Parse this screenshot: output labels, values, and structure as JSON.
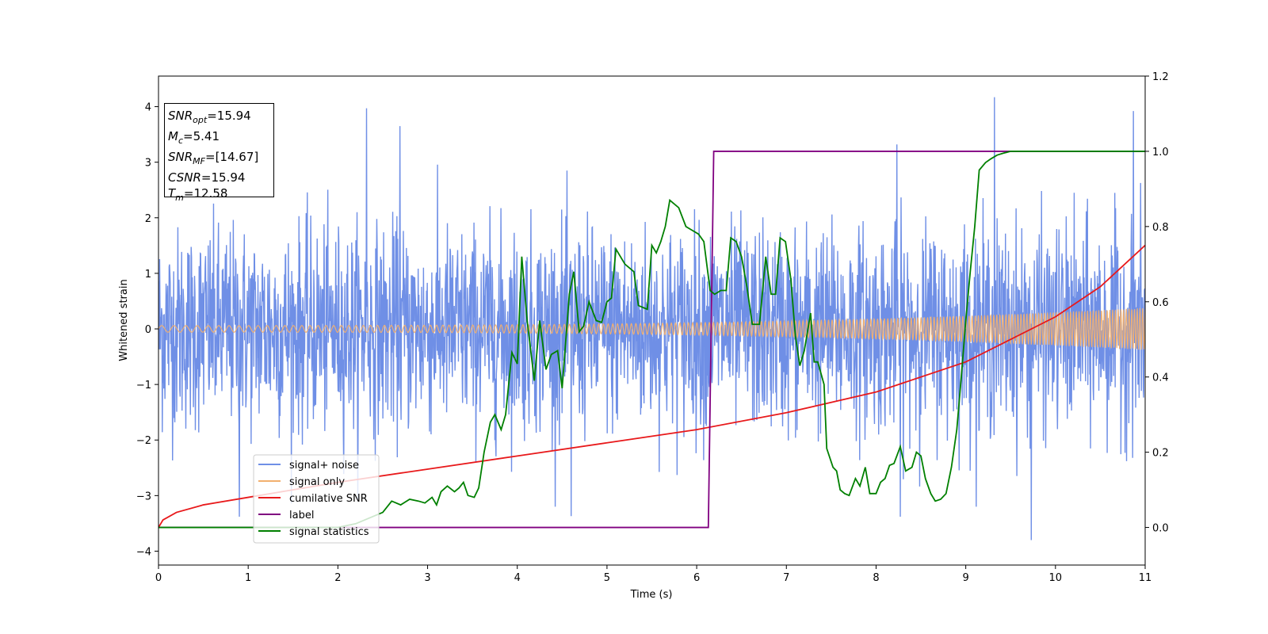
{
  "chart_data": {
    "type": "line",
    "title": "",
    "xlabel": "Time (s)",
    "ylabel": "Whitened strain",
    "xlim": [
      0,
      11
    ],
    "ylim": [
      -4.25,
      4.55
    ],
    "y2lim": [
      -0.1,
      1.2
    ],
    "xticks": [
      0,
      1,
      2,
      3,
      4,
      5,
      6,
      7,
      8,
      9,
      10,
      11
    ],
    "yticks": [
      -4,
      -3,
      -2,
      -1,
      0,
      1,
      2,
      3,
      4
    ],
    "y2ticks": [
      0.0,
      0.2,
      0.4,
      0.6,
      0.8,
      1.0,
      1.2
    ],
    "grid": false,
    "legend_position": "lower-left",
    "annotation": {
      "rows": [
        {
          "sym": "SNR",
          "sub": "opt",
          "text": "=15.94"
        },
        {
          "sym": "M",
          "sub": "c",
          "text": "=5.41"
        },
        {
          "sym": "SNR",
          "sub": "MF",
          "text": "=[14.67]"
        },
        {
          "sym": "CSNR",
          "sub": "",
          "text": "=15.94"
        },
        {
          "sym": "T",
          "sub": "m",
          "text": "=12.58"
        }
      ]
    },
    "series": [
      {
        "name": "signal+ noise",
        "axis": "left",
        "color": "#6f8fe6",
        "kind": "noise",
        "std": 0.95,
        "peak_spikes": [
          [
            2.32,
            3.97
          ],
          [
            2.69,
            3.65
          ],
          [
            8.23,
            3.32
          ],
          [
            9.32,
            4.17
          ],
          [
            10.87,
            3.92
          ],
          [
            9.73,
            -3.8
          ],
          [
            4.6,
            -3.37
          ],
          [
            8.27,
            -3.38
          ],
          [
            0.9,
            -3.38
          ]
        ]
      },
      {
        "name": "signal only",
        "axis": "left",
        "color": "#f2b06f",
        "kind": "chirp",
        "amplitude_start": 0.06,
        "amplitude_end": 0.38
      },
      {
        "name": "cumilative SNR",
        "axis": "right",
        "color": "#e8191b",
        "x": [
          0,
          0.05,
          0.2,
          0.5,
          1,
          2,
          3,
          4,
          5,
          6,
          7,
          8,
          9,
          10,
          10.5,
          11
        ],
        "y": [
          0.0,
          0.02,
          0.04,
          0.06,
          0.08,
          0.12,
          0.155,
          0.19,
          0.225,
          0.26,
          0.305,
          0.36,
          0.44,
          0.56,
          0.64,
          0.75
        ]
      },
      {
        "name": "label",
        "axis": "right",
        "color": "#800080",
        "x": [
          0,
          6.13,
          6.19,
          11
        ],
        "y": [
          0.0,
          0.0,
          1.0,
          1.0
        ]
      },
      {
        "name": "signal statistics",
        "axis": "right",
        "color": "#008000",
        "x": [
          0,
          1.0,
          2.0,
          2.2,
          2.5,
          2.6,
          2.7,
          2.8,
          2.9,
          2.97,
          3.05,
          3.1,
          3.15,
          3.22,
          3.3,
          3.35,
          3.4,
          3.45,
          3.52,
          3.57,
          3.63,
          3.7,
          3.75,
          3.82,
          3.87,
          3.94,
          4.0,
          4.05,
          4.11,
          4.19,
          4.25,
          4.32,
          4.38,
          4.45,
          4.5,
          4.58,
          4.63,
          4.69,
          4.74,
          4.8,
          4.88,
          4.94,
          5.0,
          5.05,
          5.1,
          5.15,
          5.2,
          5.25,
          5.3,
          5.35,
          5.45,
          5.5,
          5.55,
          5.6,
          5.65,
          5.7,
          5.8,
          5.88,
          5.95,
          6.02,
          6.08,
          6.15,
          6.2,
          6.27,
          6.33,
          6.38,
          6.44,
          6.5,
          6.56,
          6.62,
          6.7,
          6.77,
          6.83,
          6.88,
          6.93,
          6.99,
          7.05,
          7.1,
          7.15,
          7.2,
          7.27,
          7.31,
          7.35,
          7.42,
          7.45,
          7.52,
          7.56,
          7.6,
          7.65,
          7.7,
          7.77,
          7.82,
          7.88,
          7.93,
          8.0,
          8.05,
          8.1,
          8.15,
          8.2,
          8.27,
          8.33,
          8.4,
          8.45,
          8.5,
          8.55,
          8.61,
          8.66,
          8.72,
          8.78,
          8.84,
          8.9,
          8.95,
          9.0,
          9.05,
          9.1,
          9.15,
          9.22,
          9.28,
          9.35,
          9.42,
          9.5,
          9.58,
          9.65,
          9.7,
          9.77,
          9.83,
          9.9,
          10.0,
          10.2,
          11.0
        ],
        "y": [
          0.0,
          0.0,
          0.0,
          0.01,
          0.04,
          0.07,
          0.06,
          0.075,
          0.07,
          0.065,
          0.08,
          0.06,
          0.095,
          0.11,
          0.095,
          0.105,
          0.12,
          0.085,
          0.08,
          0.105,
          0.2,
          0.28,
          0.3,
          0.26,
          0.3,
          0.465,
          0.435,
          0.72,
          0.55,
          0.39,
          0.55,
          0.42,
          0.46,
          0.47,
          0.37,
          0.62,
          0.68,
          0.52,
          0.535,
          0.6,
          0.55,
          0.545,
          0.6,
          0.61,
          0.74,
          0.72,
          0.7,
          0.69,
          0.68,
          0.59,
          0.58,
          0.75,
          0.73,
          0.76,
          0.8,
          0.87,
          0.85,
          0.8,
          0.79,
          0.78,
          0.76,
          0.63,
          0.62,
          0.63,
          0.63,
          0.77,
          0.76,
          0.72,
          0.64,
          0.54,
          0.54,
          0.72,
          0.62,
          0.62,
          0.77,
          0.76,
          0.66,
          0.51,
          0.43,
          0.47,
          0.57,
          0.44,
          0.44,
          0.38,
          0.21,
          0.16,
          0.15,
          0.1,
          0.09,
          0.085,
          0.13,
          0.11,
          0.16,
          0.09,
          0.09,
          0.12,
          0.13,
          0.165,
          0.17,
          0.215,
          0.15,
          0.16,
          0.2,
          0.19,
          0.13,
          0.09,
          0.07,
          0.075,
          0.09,
          0.16,
          0.26,
          0.4,
          0.55,
          0.68,
          0.8,
          0.95,
          0.97,
          0.98,
          0.99,
          0.995,
          1.0,
          1.0,
          1.0,
          1.0,
          1.0,
          1.0,
          1.0,
          1.0,
          1.0,
          1.0
        ]
      }
    ]
  }
}
